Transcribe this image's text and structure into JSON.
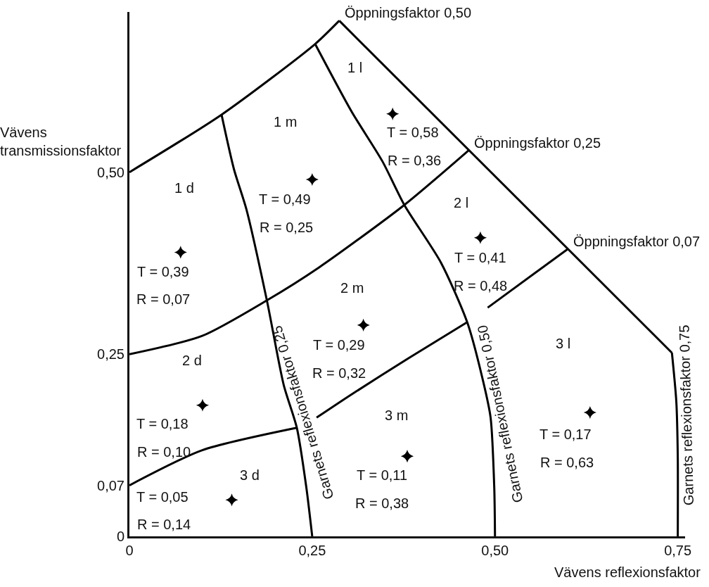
{
  "chart_data": {
    "type": "line",
    "xlabel": "Vävens reflexionsfaktor",
    "ylabel": "Vävens\ntransmissionsfaktor",
    "xlim": [
      0,
      0.76
    ],
    "ylim": [
      0,
      0.72
    ],
    "xticks": [
      0,
      {
        "value": 0.25,
        "label": "0,25"
      },
      {
        "value": 0.5,
        "label": "0,50"
      },
      {
        "value": 0.75,
        "label": "0,75"
      }
    ],
    "yticks": [
      0,
      {
        "value": 0.07,
        "label": "0,07"
      },
      {
        "value": 0.25,
        "label": "0,25"
      },
      {
        "value": 0.5,
        "label": "0,50"
      }
    ],
    "series": [
      {
        "color": "#000000",
        "x": [
          0.287,
          0.742
        ],
        "values": [
          0.708,
          0.252
        ]
      },
      {
        "name": "Öppningsfaktor 0,50",
        "color": "#000000",
        "x": [
          0,
          0.126,
          0.254,
          0.287
        ],
        "values": [
          0.5,
          0.579,
          0.676,
          0.708
        ]
      },
      {
        "name": "Öppningsfaktor 0,25",
        "color": "#000000",
        "x": [
          0,
          0.099,
          0.188,
          0.259,
          0.376,
          0.464
        ],
        "values": [
          0.25,
          0.275,
          0.324,
          0.369,
          0.455,
          0.53
        ]
      },
      {
        "name": "Öppningsfaktor 0,07",
        "color": "#000000",
        "x": [
          0,
          0.099,
          0.229,
          0.242,
          0.256,
          0.304,
          0.384,
          0.462,
          0.476,
          0.49,
          0.599
        ],
        "values": [
          0.07,
          0.118,
          0.149,
          null,
          0.163,
          0.195,
          0.246,
          0.294,
          null,
          0.314,
          0.394
        ]
      },
      {
        "name": "Garnets reflexionsfaktor 0,25",
        "color": "#000000",
        "x": [
          0.126,
          0.143,
          0.16,
          0.188,
          0.211,
          0.229,
          0.242,
          0.25
        ],
        "values": [
          0.579,
          0.504,
          0.449,
          0.324,
          0.208,
          0.149,
          0.067,
          0
        ]
      },
      {
        "name": "Garnets reflexionsfaktor 0,50",
        "color": "#000000",
        "x": [
          0.254,
          0.304,
          0.346,
          0.376,
          0.426,
          0.462,
          0.484,
          0.494,
          0.499,
          0.5
        ],
        "values": [
          0.676,
          0.583,
          0.515,
          0.455,
          0.376,
          0.294,
          0.212,
          0.163,
          0.067,
          0
        ]
      },
      {
        "name": "Garnets reflexionsfaktor 0,75",
        "color": "#000000",
        "x": [
          0.742,
          0.748,
          0.75,
          0.75
        ],
        "values": [
          0.252,
          0.185,
          0.108,
          0
        ]
      },
      {
        "type": "scatter",
        "marker": "star",
        "color": "#000000",
        "x": [
          0.36,
          0.25,
          0.07,
          0.48,
          0.32,
          0.1,
          0.38,
          0.14,
          0.63
        ],
        "values": [
          0.58,
          0.49,
          0.39,
          0.41,
          0.29,
          0.18,
          0.11,
          0.05,
          0.17
        ]
      }
    ],
    "annotations": [
      "1 d",
      "1 m",
      "1 l",
      "2 d",
      "2 m",
      "2 l",
      "3 d",
      "3 m",
      "3 l",
      "T = 0,58",
      "R = 0,36",
      "T = 0,49",
      "R = 0,25",
      "T = 0,39",
      "R = 0,07",
      "T = 0,29",
      "R = 0,32",
      "T = 0,41",
      "R = 0,48",
      "T = 0,18",
      "R = 0,10",
      "T = 0,11",
      "R = 0,38",
      "T = 0,05",
      "R = 0,14",
      "T = 0,17",
      "R = 0,63"
    ]
  }
}
